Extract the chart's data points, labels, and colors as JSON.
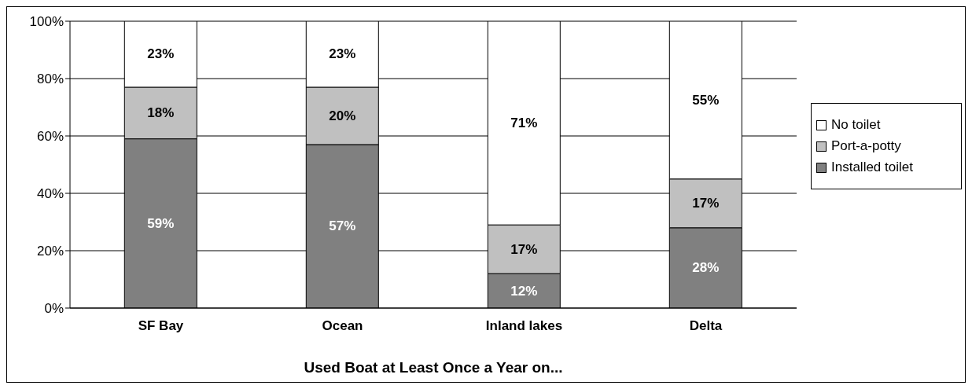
{
  "chart_data": {
    "type": "bar",
    "stacked": true,
    "xlabel": "Used Boat at Least Once a Year on...",
    "categories": [
      "SF Bay",
      "Ocean",
      "Inland lakes",
      "Delta"
    ],
    "series": [
      {
        "name": "Installed toilet",
        "color": "#808080",
        "values": [
          59,
          57,
          12,
          28
        ],
        "value_labels": [
          "59%",
          "57%",
          "12%",
          "28%"
        ]
      },
      {
        "name": "Port-a-potty",
        "color": "#c0c0c0",
        "values": [
          18,
          20,
          17,
          17
        ],
        "value_labels": [
          "18%",
          "20%",
          "17%",
          "17%"
        ]
      },
      {
        "name": "No toilet",
        "color": "#ffffff",
        "values": [
          23,
          23,
          71,
          55
        ],
        "value_labels": [
          "23%",
          "23%",
          "71%",
          "55%"
        ]
      }
    ],
    "ylim": [
      0,
      100
    ],
    "yticks": [
      {
        "value": 0,
        "label": "0%"
      },
      {
        "value": 20,
        "label": "20%"
      },
      {
        "value": 40,
        "label": "40%"
      },
      {
        "value": 60,
        "label": "60%"
      },
      {
        "value": 80,
        "label": "80%"
      },
      {
        "value": 100,
        "label": "100%"
      }
    ],
    "grid": "y",
    "legend": "right"
  }
}
